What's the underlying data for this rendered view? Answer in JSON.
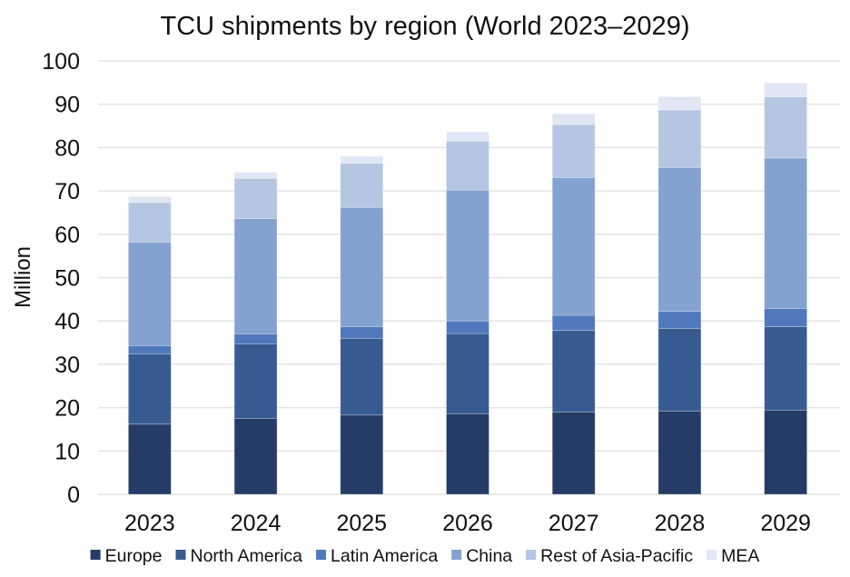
{
  "chart_data": {
    "type": "bar",
    "stacked": true,
    "title": "TCU shipments by region (World 2023–2029)",
    "xlabel": "",
    "ylabel": "Million",
    "ylim": [
      0,
      100
    ],
    "yticks": [
      0,
      10,
      20,
      30,
      40,
      50,
      60,
      70,
      80,
      90,
      100
    ],
    "grid": true,
    "legend_position": "bottom",
    "categories": [
      "2023",
      "2024",
      "2025",
      "2026",
      "2027",
      "2028",
      "2029"
    ],
    "series": [
      {
        "name": "Europe",
        "color": "#253c66",
        "values": [
          16.2,
          17.5,
          18.3,
          18.6,
          19.0,
          19.2,
          19.4
        ]
      },
      {
        "name": "North America",
        "color": "#375b91",
        "values": [
          16.2,
          17.2,
          17.7,
          18.5,
          18.8,
          19.1,
          19.3
        ]
      },
      {
        "name": "Latin America",
        "color": "#5079bd",
        "values": [
          1.9,
          2.3,
          2.7,
          2.9,
          3.5,
          3.9,
          4.2
        ]
      },
      {
        "name": "China",
        "color": "#84a2d0",
        "values": [
          23.9,
          26.6,
          27.5,
          30.2,
          31.8,
          33.2,
          34.7
        ]
      },
      {
        "name": "Rest of Asia-Pacific",
        "color": "#b5c6e3",
        "values": [
          9.1,
          9.3,
          10.2,
          11.3,
          12.2,
          13.3,
          14.1
        ]
      },
      {
        "name": "MEA",
        "color": "#e0e6f3",
        "values": [
          1.4,
          1.4,
          1.6,
          2.1,
          2.5,
          3.0,
          3.2
        ]
      }
    ]
  }
}
